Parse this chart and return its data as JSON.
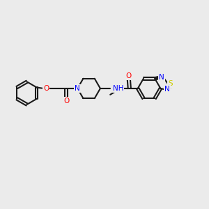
{
  "background_color": "#ebebeb",
  "figsize": [
    3.0,
    3.0
  ],
  "dpi": 100,
  "bond_color": "#1a1a1a",
  "bond_lw": 1.5,
  "atom_colors": {
    "N": "#0000ff",
    "O": "#ff0000",
    "S": "#cccc00",
    "H": "#555555",
    "C": "#1a1a1a"
  }
}
